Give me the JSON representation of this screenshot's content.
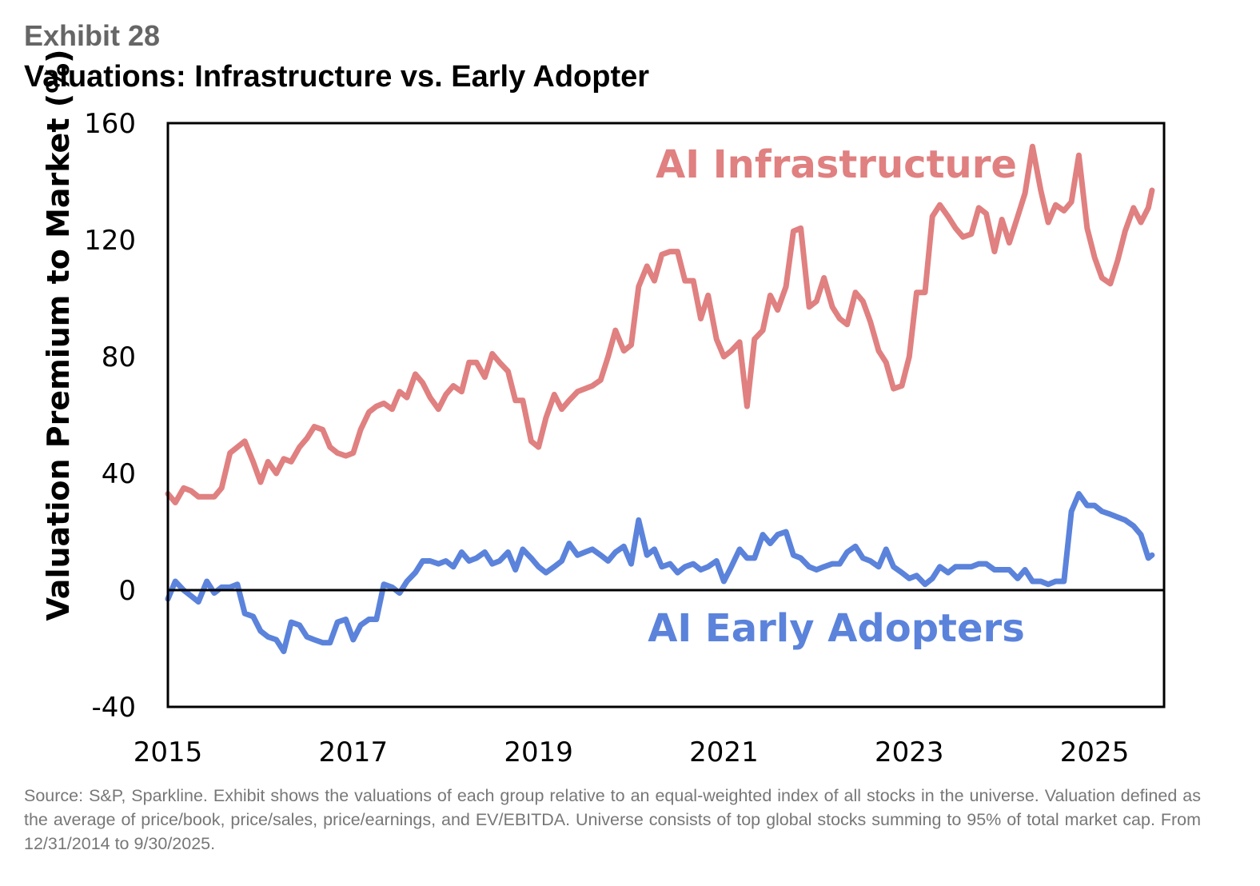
{
  "header": {
    "exhibit": "Exhibit 28",
    "title": "Valuations: Infrastructure vs. Early Adopter"
  },
  "footer": {
    "source": "Source: S&P, Sparkline. Exhibit shows the valuations of each group relative to an equal-weighted index of all stocks in the universe. Valuation defined as the average of price/book, price/sales, price/earnings, and EV/EBITDA. Universe consists of top global stocks summing to 95% of total market cap. From 12/31/2014 to 9/30/2025."
  },
  "chart_data": {
    "type": "line",
    "ylabel": "Valuation Premium to Market (%)",
    "xlabel": "",
    "ylim": [
      -40,
      160
    ],
    "xlim": [
      2015.0,
      2025.75
    ],
    "yticks": [
      "160",
      "120",
      "80",
      "40",
      "0",
      "-40"
    ],
    "xticks": [
      "2015",
      "2017",
      "2019",
      "2021",
      "2023",
      "2025"
    ],
    "zero_line": true,
    "series": [
      {
        "name": "AI Infrastructure",
        "color": "#e08080",
        "points": [
          [
            2015.0,
            33
          ],
          [
            2015.08,
            30
          ],
          [
            2015.17,
            35
          ],
          [
            2015.25,
            34
          ],
          [
            2015.33,
            32
          ],
          [
            2015.42,
            32
          ],
          [
            2015.5,
            32
          ],
          [
            2015.58,
            35
          ],
          [
            2015.67,
            47
          ],
          [
            2015.75,
            49
          ],
          [
            2015.83,
            51
          ],
          [
            2015.92,
            44
          ],
          [
            2016.0,
            37
          ],
          [
            2016.08,
            44
          ],
          [
            2016.17,
            40
          ],
          [
            2016.25,
            45
          ],
          [
            2016.33,
            44
          ],
          [
            2016.42,
            49
          ],
          [
            2016.5,
            52
          ],
          [
            2016.58,
            56
          ],
          [
            2016.67,
            55
          ],
          [
            2016.75,
            49
          ],
          [
            2016.83,
            47
          ],
          [
            2016.92,
            46
          ],
          [
            2017.0,
            47
          ],
          [
            2017.08,
            55
          ],
          [
            2017.17,
            61
          ],
          [
            2017.25,
            63
          ],
          [
            2017.33,
            64
          ],
          [
            2017.42,
            62
          ],
          [
            2017.5,
            68
          ],
          [
            2017.58,
            66
          ],
          [
            2017.67,
            74
          ],
          [
            2017.75,
            71
          ],
          [
            2017.83,
            66
          ],
          [
            2017.92,
            62
          ],
          [
            2018.0,
            67
          ],
          [
            2018.08,
            70
          ],
          [
            2018.17,
            68
          ],
          [
            2018.25,
            78
          ],
          [
            2018.33,
            78
          ],
          [
            2018.42,
            73
          ],
          [
            2018.5,
            81
          ],
          [
            2018.58,
            78
          ],
          [
            2018.67,
            75
          ],
          [
            2018.75,
            65
          ],
          [
            2018.83,
            65
          ],
          [
            2018.92,
            51
          ],
          [
            2019.0,
            49
          ],
          [
            2019.08,
            59
          ],
          [
            2019.17,
            67
          ],
          [
            2019.25,
            62
          ],
          [
            2019.33,
            65
          ],
          [
            2019.42,
            68
          ],
          [
            2019.5,
            69
          ],
          [
            2019.58,
            70
          ],
          [
            2019.67,
            72
          ],
          [
            2019.75,
            80
          ],
          [
            2019.83,
            89
          ],
          [
            2019.92,
            82
          ],
          [
            2020.0,
            84
          ],
          [
            2020.08,
            104
          ],
          [
            2020.17,
            111
          ],
          [
            2020.25,
            106
          ],
          [
            2020.33,
            115
          ],
          [
            2020.42,
            116
          ],
          [
            2020.5,
            116
          ],
          [
            2020.58,
            106
          ],
          [
            2020.67,
            106
          ],
          [
            2020.75,
            93
          ],
          [
            2020.83,
            101
          ],
          [
            2020.92,
            86
          ],
          [
            2021.0,
            80
          ],
          [
            2021.08,
            82
          ],
          [
            2021.17,
            85
          ],
          [
            2021.25,
            63
          ],
          [
            2021.33,
            86
          ],
          [
            2021.42,
            89
          ],
          [
            2021.5,
            101
          ],
          [
            2021.58,
            96
          ],
          [
            2021.67,
            104
          ],
          [
            2021.75,
            123
          ],
          [
            2021.83,
            124
          ],
          [
            2021.92,
            97
          ],
          [
            2022.0,
            99
          ],
          [
            2022.08,
            107
          ],
          [
            2022.17,
            97
          ],
          [
            2022.25,
            93
          ],
          [
            2022.33,
            91
          ],
          [
            2022.42,
            102
          ],
          [
            2022.5,
            99
          ],
          [
            2022.58,
            92
          ],
          [
            2022.67,
            82
          ],
          [
            2022.75,
            78
          ],
          [
            2022.83,
            69
          ],
          [
            2022.92,
            70
          ],
          [
            2023.0,
            80
          ],
          [
            2023.08,
            102
          ],
          [
            2023.17,
            102
          ],
          [
            2023.25,
            128
          ],
          [
            2023.33,
            132
          ],
          [
            2023.42,
            128
          ],
          [
            2023.5,
            124
          ],
          [
            2023.58,
            121
          ],
          [
            2023.67,
            122
          ],
          [
            2023.75,
            131
          ],
          [
            2023.83,
            129
          ],
          [
            2023.92,
            116
          ],
          [
            2024.0,
            127
          ],
          [
            2024.08,
            119
          ],
          [
            2024.17,
            128
          ],
          [
            2024.25,
            136
          ],
          [
            2024.33,
            152
          ],
          [
            2024.42,
            137
          ],
          [
            2024.5,
            126
          ],
          [
            2024.58,
            132
          ],
          [
            2024.67,
            130
          ],
          [
            2024.75,
            133
          ],
          [
            2024.83,
            149
          ],
          [
            2024.92,
            124
          ],
          [
            2025.0,
            114
          ],
          [
            2025.08,
            107
          ],
          [
            2025.17,
            105
          ],
          [
            2025.25,
            113
          ],
          [
            2025.33,
            123
          ],
          [
            2025.42,
            131
          ],
          [
            2025.5,
            126
          ],
          [
            2025.58,
            131
          ],
          [
            2025.62,
            137
          ]
        ]
      },
      {
        "name": "AI Early Adopters",
        "color": "#5b83db",
        "points": [
          [
            2015.0,
            -3
          ],
          [
            2015.08,
            3
          ],
          [
            2015.17,
            0
          ],
          [
            2015.25,
            -2
          ],
          [
            2015.33,
            -4
          ],
          [
            2015.42,
            3
          ],
          [
            2015.5,
            -1
          ],
          [
            2015.58,
            1
          ],
          [
            2015.67,
            1
          ],
          [
            2015.75,
            2
          ],
          [
            2015.83,
            -8
          ],
          [
            2015.92,
            -9
          ],
          [
            2016.0,
            -14
          ],
          [
            2016.08,
            -16
          ],
          [
            2016.17,
            -17
          ],
          [
            2016.25,
            -21
          ],
          [
            2016.33,
            -11
          ],
          [
            2016.42,
            -12
          ],
          [
            2016.5,
            -16
          ],
          [
            2016.58,
            -17
          ],
          [
            2016.67,
            -18
          ],
          [
            2016.75,
            -18
          ],
          [
            2016.83,
            -11
          ],
          [
            2016.92,
            -10
          ],
          [
            2017.0,
            -17
          ],
          [
            2017.08,
            -12
          ],
          [
            2017.17,
            -10
          ],
          [
            2017.25,
            -10
          ],
          [
            2017.33,
            2
          ],
          [
            2017.42,
            1
          ],
          [
            2017.5,
            -1
          ],
          [
            2017.58,
            3
          ],
          [
            2017.67,
            6
          ],
          [
            2017.75,
            10
          ],
          [
            2017.83,
            10
          ],
          [
            2017.92,
            9
          ],
          [
            2018.0,
            10
          ],
          [
            2018.08,
            8
          ],
          [
            2018.17,
            13
          ],
          [
            2018.25,
            10
          ],
          [
            2018.33,
            11
          ],
          [
            2018.42,
            13
          ],
          [
            2018.5,
            9
          ],
          [
            2018.58,
            10
          ],
          [
            2018.67,
            13
          ],
          [
            2018.75,
            7
          ],
          [
            2018.83,
            14
          ],
          [
            2018.92,
            11
          ],
          [
            2019.0,
            8
          ],
          [
            2019.08,
            6
          ],
          [
            2019.17,
            8
          ],
          [
            2019.25,
            10
          ],
          [
            2019.33,
            16
          ],
          [
            2019.42,
            12
          ],
          [
            2019.5,
            13
          ],
          [
            2019.58,
            14
          ],
          [
            2019.67,
            12
          ],
          [
            2019.75,
            10
          ],
          [
            2019.83,
            13
          ],
          [
            2019.92,
            15
          ],
          [
            2020.0,
            9
          ],
          [
            2020.08,
            24
          ],
          [
            2020.17,
            12
          ],
          [
            2020.25,
            14
          ],
          [
            2020.33,
            8
          ],
          [
            2020.42,
            9
          ],
          [
            2020.5,
            6
          ],
          [
            2020.58,
            8
          ],
          [
            2020.67,
            9
          ],
          [
            2020.75,
            7
          ],
          [
            2020.83,
            8
          ],
          [
            2020.92,
            10
          ],
          [
            2021.0,
            3
          ],
          [
            2021.08,
            8
          ],
          [
            2021.17,
            14
          ],
          [
            2021.25,
            11
          ],
          [
            2021.33,
            11
          ],
          [
            2021.42,
            19
          ],
          [
            2021.5,
            16
          ],
          [
            2021.58,
            19
          ],
          [
            2021.67,
            20
          ],
          [
            2021.75,
            12
          ],
          [
            2021.83,
            11
          ],
          [
            2021.92,
            8
          ],
          [
            2022.0,
            7
          ],
          [
            2022.08,
            8
          ],
          [
            2022.17,
            9
          ],
          [
            2022.25,
            9
          ],
          [
            2022.33,
            13
          ],
          [
            2022.42,
            15
          ],
          [
            2022.5,
            11
          ],
          [
            2022.58,
            10
          ],
          [
            2022.67,
            8
          ],
          [
            2022.75,
            14
          ],
          [
            2022.83,
            8
          ],
          [
            2022.92,
            6
          ],
          [
            2023.0,
            4
          ],
          [
            2023.08,
            5
          ],
          [
            2023.17,
            2
          ],
          [
            2023.25,
            4
          ],
          [
            2023.33,
            8
          ],
          [
            2023.42,
            6
          ],
          [
            2023.5,
            8
          ],
          [
            2023.58,
            8
          ],
          [
            2023.67,
            8
          ],
          [
            2023.75,
            9
          ],
          [
            2023.83,
            9
          ],
          [
            2023.92,
            7
          ],
          [
            2024.0,
            7
          ],
          [
            2024.08,
            7
          ],
          [
            2024.17,
            4
          ],
          [
            2024.25,
            7
          ],
          [
            2024.33,
            3
          ],
          [
            2024.42,
            3
          ],
          [
            2024.5,
            2
          ],
          [
            2024.58,
            3
          ],
          [
            2024.67,
            3
          ],
          [
            2024.75,
            27
          ],
          [
            2024.83,
            33
          ],
          [
            2024.92,
            29
          ],
          [
            2025.0,
            29
          ],
          [
            2025.08,
            27
          ],
          [
            2025.17,
            26
          ],
          [
            2025.25,
            25
          ],
          [
            2025.33,
            24
          ],
          [
            2025.42,
            22
          ],
          [
            2025.5,
            19
          ],
          [
            2025.58,
            11
          ],
          [
            2025.62,
            12
          ]
        ]
      }
    ]
  }
}
